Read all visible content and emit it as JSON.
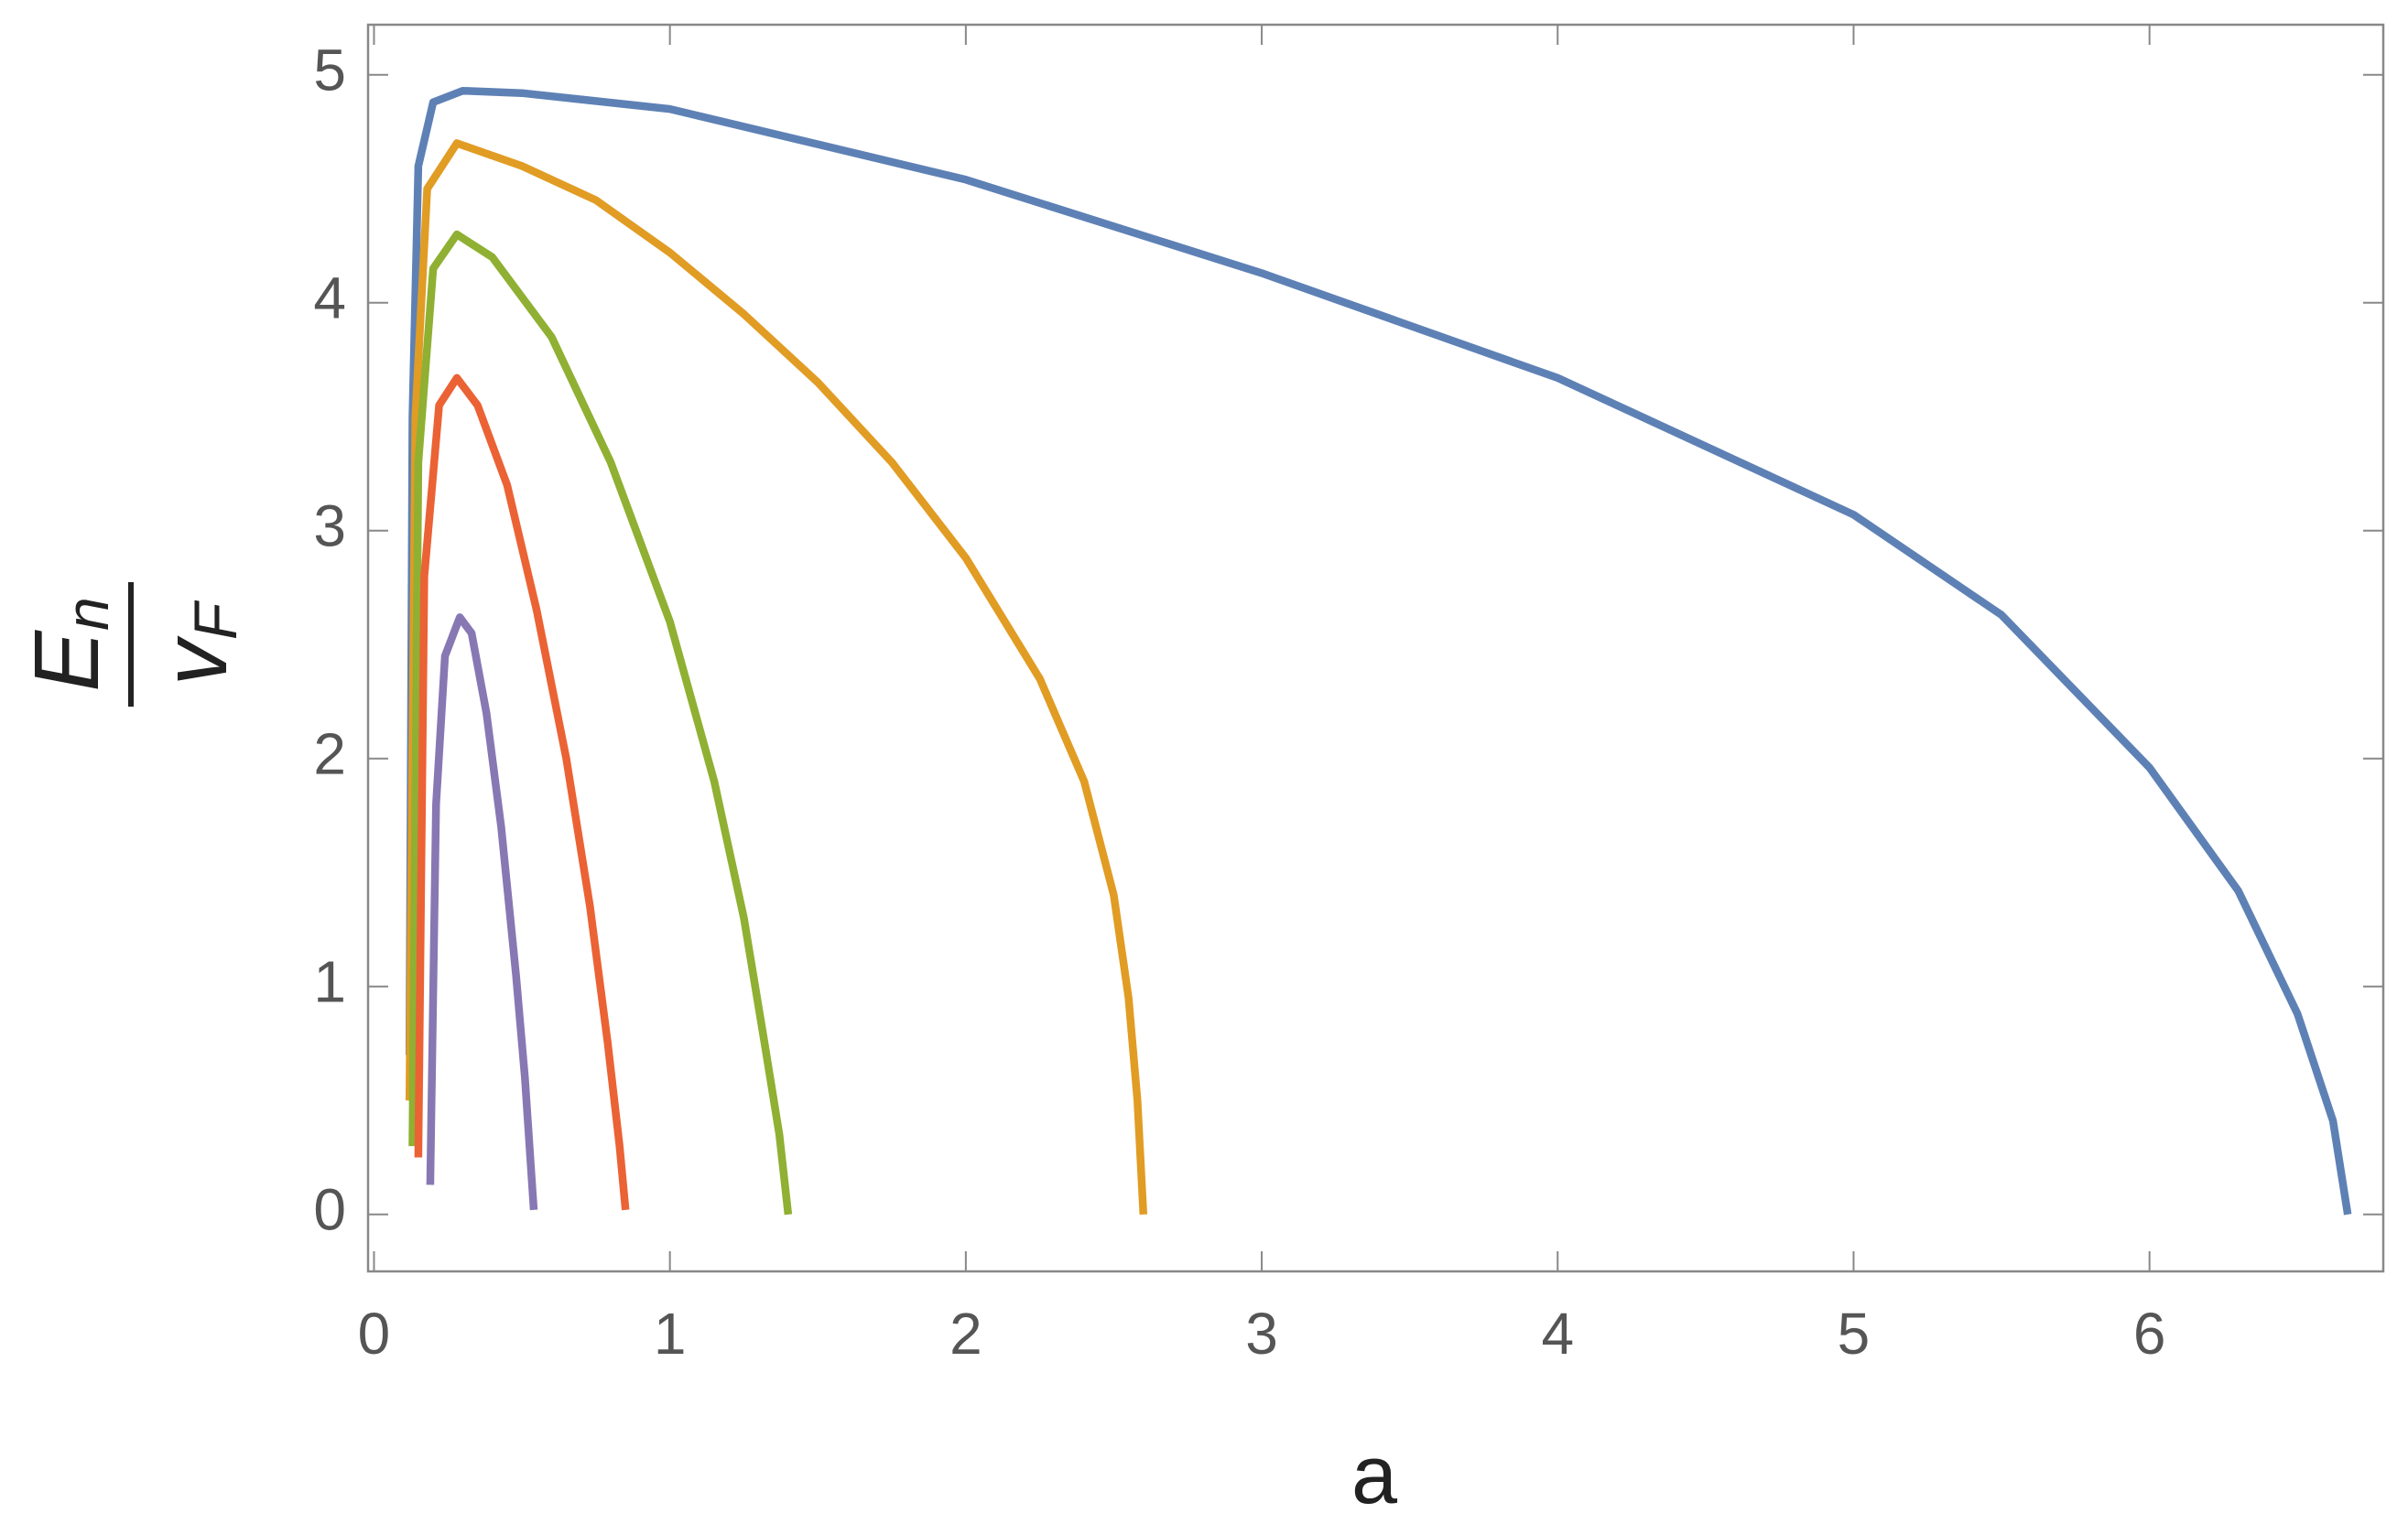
{
  "chart_data": {
    "type": "line",
    "xlabel": "a",
    "ylabel": {
      "numerator": "E",
      "numerator_sub": "n",
      "denominator": "v",
      "denominator_sub": "F"
    },
    "xlim": [
      -0.02,
      6.79
    ],
    "ylim": [
      -0.25,
      5.22
    ],
    "xticks": [
      0,
      1,
      2,
      3,
      4,
      5,
      6
    ],
    "yticks": [
      0,
      1,
      2,
      3,
      4,
      5
    ],
    "series": [
      {
        "color": "#5e81b5",
        "x": [
          0.12,
          0.13,
          0.15,
          0.2,
          0.3,
          0.5,
          1,
          2,
          3,
          4,
          5,
          5.5,
          6,
          6.3,
          6.5,
          6.62,
          6.67
        ],
        "values": [
          0.7,
          3.5,
          4.6,
          4.88,
          4.93,
          4.92,
          4.85,
          4.54,
          4.13,
          3.67,
          3.07,
          2.63,
          1.96,
          1.42,
          0.88,
          0.41,
          0
        ]
      },
      {
        "color": "#e19c24",
        "x": [
          0.12,
          0.14,
          0.18,
          0.28,
          0.5,
          0.75,
          1,
          1.25,
          1.5,
          1.75,
          2,
          2.25,
          2.4,
          2.5,
          2.55,
          2.58,
          2.6
        ],
        "values": [
          0.5,
          3.5,
          4.5,
          4.7,
          4.6,
          4.45,
          4.22,
          3.95,
          3.65,
          3.3,
          2.88,
          2.35,
          1.9,
          1.4,
          0.95,
          0.5,
          0
        ]
      },
      {
        "color": "#8fb032",
        "x": [
          0.13,
          0.15,
          0.2,
          0.28,
          0.4,
          0.6,
          0.8,
          1.0,
          1.15,
          1.25,
          1.32,
          1.37,
          1.4
        ],
        "values": [
          0.3,
          3.3,
          4.15,
          4.3,
          4.2,
          3.85,
          3.3,
          2.6,
          1.9,
          1.3,
          0.75,
          0.35,
          0
        ]
      },
      {
        "color": "#eb6235",
        "x": [
          0.15,
          0.17,
          0.22,
          0.28,
          0.35,
          0.45,
          0.55,
          0.65,
          0.73,
          0.79,
          0.83,
          0.85
        ],
        "values": [
          0.25,
          2.8,
          3.55,
          3.67,
          3.55,
          3.2,
          2.65,
          2.0,
          1.35,
          0.75,
          0.3,
          0.02
        ]
      },
      {
        "color": "#8778b3",
        "x": [
          0.19,
          0.21,
          0.24,
          0.29,
          0.33,
          0.38,
          0.43,
          0.48,
          0.51,
          0.54
        ],
        "values": [
          0.13,
          1.8,
          2.45,
          2.62,
          2.55,
          2.2,
          1.7,
          1.05,
          0.6,
          0.02
        ]
      }
    ]
  }
}
